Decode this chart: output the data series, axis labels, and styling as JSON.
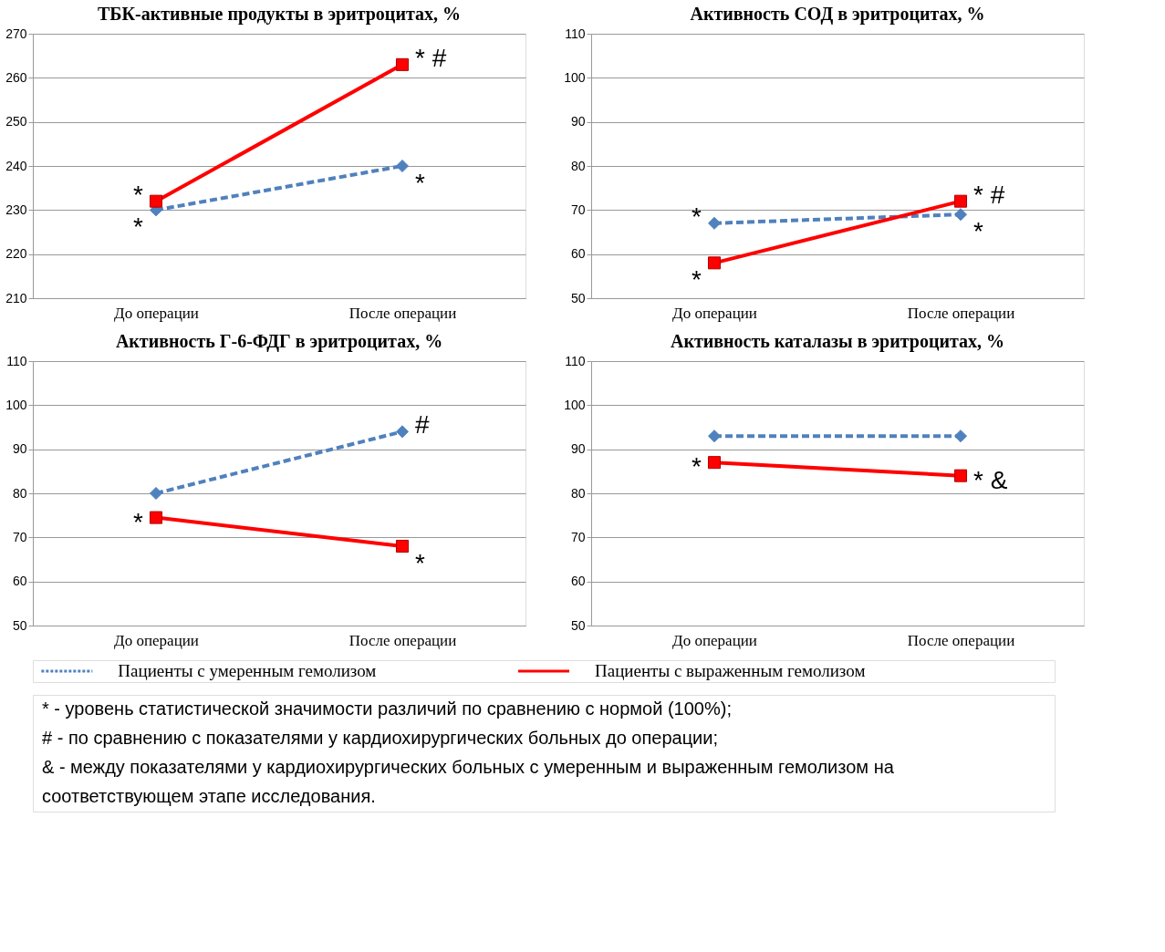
{
  "chart_data": [
    {
      "type": "line",
      "title": "ТБК-активные продукты в эритроцитах, %",
      "categories": [
        "До операции",
        "После операции"
      ],
      "ylim": [
        210,
        270
      ],
      "yticks": [
        210,
        220,
        230,
        240,
        250,
        260,
        270
      ],
      "grid": "y",
      "legend": "bottom",
      "series": [
        {
          "name": "Пациенты с умеренным гемолизом",
          "color": "#4f81bd",
          "values": [
            230,
            240
          ],
          "line_style": "dashed",
          "marker": "diamond"
        },
        {
          "name": "Пациенты с выраженным гемолизом",
          "color": "#ff0000",
          "values": [
            232,
            263
          ],
          "line_style": "solid",
          "marker": "square"
        }
      ],
      "annotations": [
        {
          "text": "*",
          "x": "До операции",
          "y": 232
        },
        {
          "text": "*",
          "x": "До операции",
          "y": 230
        },
        {
          "text": "* #",
          "x": "После операции",
          "y": 263
        },
        {
          "text": "*",
          "x": "После операции",
          "y": 240
        }
      ]
    },
    {
      "type": "line",
      "title": "Активность СОД в эритроцитах, %",
      "categories": [
        "До операции",
        "После операции"
      ],
      "ylim": [
        50,
        110
      ],
      "yticks": [
        50,
        60,
        70,
        80,
        90,
        100,
        110
      ],
      "grid": "y",
      "legend": "bottom",
      "series": [
        {
          "name": "Пациенты с умеренным гемолизом",
          "color": "#4f81bd",
          "values": [
            67,
            69
          ],
          "line_style": "dashed",
          "marker": "diamond"
        },
        {
          "name": "Пациенты с выраженным гемолизом",
          "color": "#ff0000",
          "values": [
            58,
            72
          ],
          "line_style": "solid",
          "marker": "square"
        }
      ],
      "annotations": [
        {
          "text": "*",
          "x": "До операции",
          "y": 67
        },
        {
          "text": "*",
          "x": "До операции",
          "y": 58
        },
        {
          "text": "* #",
          "x": "После операции",
          "y": 72
        },
        {
          "text": "*",
          "x": "После операции",
          "y": 69
        }
      ]
    },
    {
      "type": "line",
      "title": "Активность Г-6-ФДГ в эритроцитах, %",
      "categories": [
        "До операции",
        "После операции"
      ],
      "ylim": [
        50,
        110
      ],
      "yticks": [
        50,
        60,
        70,
        80,
        90,
        100,
        110
      ],
      "grid": "y",
      "legend": "bottom",
      "series": [
        {
          "name": "Пациенты с умеренным гемолизом",
          "color": "#4f81bd",
          "values": [
            80,
            94
          ],
          "line_style": "dashed",
          "marker": "diamond"
        },
        {
          "name": "Пациенты с выраженным гемолизом",
          "color": "#ff0000",
          "values": [
            74.5,
            68
          ],
          "line_style": "solid",
          "marker": "square"
        }
      ],
      "annotations": [
        {
          "text": "*",
          "x": "До операции",
          "y": 74.5
        },
        {
          "text": "#",
          "x": "После операции",
          "y": 94
        },
        {
          "text": "*",
          "x": "После операции",
          "y": 68
        }
      ]
    },
    {
      "type": "line",
      "title": "Активность каталазы в эритроцитах, %",
      "categories": [
        "До операции",
        "После операции"
      ],
      "ylim": [
        50,
        110
      ],
      "yticks": [
        50,
        60,
        70,
        80,
        90,
        100,
        110
      ],
      "grid": "y",
      "legend": "bottom",
      "series": [
        {
          "name": "Пациенты с умеренным гемолизом",
          "color": "#4f81bd",
          "values": [
            93,
            93
          ],
          "line_style": "dashed",
          "marker": "diamond"
        },
        {
          "name": "Пациенты с выраженным гемолизом",
          "color": "#ff0000",
          "values": [
            87,
            84
          ],
          "line_style": "solid",
          "marker": "square"
        }
      ],
      "annotations": [
        {
          "text": "*",
          "x": "До операции",
          "y": 87
        },
        {
          "text": "* &",
          "x": "После операции",
          "y": 84
        },
        "* - уровень статистической значимости различий по сравнению с нормой (100%);",
        "# - по сравнению с показателями у кардиохирургических больных до операции;",
        "& - между показателями у кардиохирургических больных с умеренным и выраженным гемолизом на соответствующем этапе исследования."
      ]
    }
  ]
}
